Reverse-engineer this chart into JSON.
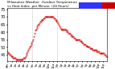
{
  "title": "Milwaukee Weather Outdoor Temperature vs Heat Index per Minute (24 Hours)",
  "bg_color": "#ffffff",
  "plot_bg": "#ffffff",
  "line_color_temp": "#dd0000",
  "line_color_heat": "#0000cc",
  "legend_temp_color": "#dd0000",
  "legend_heat_color": "#3333ff",
  "legend_bar_color": "#cc0000",
  "ylim": [
    41,
    75
  ],
  "ylabel_values": [
    45,
    50,
    55,
    60,
    65,
    70,
    75
  ],
  "xlabel_ticks": [
    0,
    60,
    120,
    180,
    240,
    300,
    360,
    420,
    480,
    540,
    600,
    660,
    720,
    780,
    840,
    900,
    960,
    1020,
    1080,
    1140,
    1200,
    1260,
    1320,
    1380
  ],
  "xlabel_labels": [
    "Mn",
    "1a",
    "2a",
    "3a",
    "4a",
    "5a",
    "6a",
    "7a",
    "8a",
    "9a",
    "10a",
    "11a",
    "Nn",
    "1p",
    "2p",
    "3p",
    "4p",
    "5p",
    "6p",
    "7p",
    "8p",
    "9p",
    "10p",
    "11p"
  ],
  "vlines": [
    360,
    720
  ],
  "temp_data": [
    [
      0,
      47
    ],
    [
      10,
      46
    ],
    [
      20,
      46
    ],
    [
      30,
      45
    ],
    [
      40,
      45
    ],
    [
      50,
      44
    ],
    [
      60,
      44
    ],
    [
      70,
      44
    ],
    [
      80,
      43
    ],
    [
      90,
      43
    ],
    [
      100,
      43
    ],
    [
      110,
      43
    ],
    [
      120,
      42
    ],
    [
      130,
      42
    ],
    [
      140,
      42
    ],
    [
      150,
      42
    ],
    [
      160,
      42
    ],
    [
      170,
      42
    ],
    [
      180,
      42
    ],
    [
      190,
      42
    ],
    [
      200,
      42
    ],
    [
      210,
      42
    ],
    [
      220,
      42
    ],
    [
      230,
      43
    ],
    [
      240,
      43
    ],
    [
      250,
      43
    ],
    [
      260,
      44
    ],
    [
      270,
      45
    ],
    [
      280,
      46
    ],
    [
      290,
      47
    ],
    [
      300,
      48
    ],
    [
      310,
      49
    ],
    [
      320,
      50
    ],
    [
      330,
      51
    ],
    [
      340,
      52
    ],
    [
      350,
      53
    ],
    [
      360,
      54
    ],
    [
      370,
      55
    ],
    [
      380,
      57
    ],
    [
      390,
      59
    ],
    [
      400,
      61
    ],
    [
      410,
      62
    ],
    [
      420,
      63
    ],
    [
      430,
      64
    ],
    [
      440,
      65
    ],
    [
      450,
      65
    ],
    [
      460,
      66
    ],
    [
      470,
      67
    ],
    [
      480,
      67
    ],
    [
      490,
      68
    ],
    [
      500,
      68
    ],
    [
      510,
      68
    ],
    [
      520,
      69
    ],
    [
      530,
      69
    ],
    [
      540,
      70
    ],
    [
      550,
      70
    ],
    [
      560,
      70
    ],
    [
      570,
      70
    ],
    [
      580,
      70
    ],
    [
      590,
      70
    ],
    [
      600,
      70
    ],
    [
      610,
      70
    ],
    [
      620,
      70
    ],
    [
      630,
      70
    ],
    [
      640,
      70
    ],
    [
      650,
      70
    ],
    [
      660,
      70
    ],
    [
      670,
      69
    ],
    [
      680,
      69
    ],
    [
      690,
      68
    ],
    [
      700,
      68
    ],
    [
      710,
      67
    ],
    [
      720,
      67
    ],
    [
      730,
      66
    ],
    [
      740,
      65
    ],
    [
      750,
      64
    ],
    [
      760,
      63
    ],
    [
      770,
      62
    ],
    [
      780,
      62
    ],
    [
      790,
      62
    ],
    [
      800,
      62
    ],
    [
      810,
      62
    ],
    [
      820,
      62
    ],
    [
      830,
      62
    ],
    [
      840,
      61
    ],
    [
      850,
      61
    ],
    [
      860,
      60
    ],
    [
      870,
      60
    ],
    [
      880,
      59
    ],
    [
      890,
      59
    ],
    [
      900,
      59
    ],
    [
      910,
      58
    ],
    [
      920,
      58
    ],
    [
      930,
      57
    ],
    [
      940,
      57
    ],
    [
      950,
      57
    ],
    [
      960,
      56
    ],
    [
      970,
      56
    ],
    [
      980,
      55
    ],
    [
      990,
      55
    ],
    [
      1000,
      55
    ],
    [
      1010,
      55
    ],
    [
      1020,
      55
    ],
    [
      1030,
      55
    ],
    [
      1040,
      55
    ],
    [
      1050,
      54
    ],
    [
      1060,
      54
    ],
    [
      1070,
      54
    ],
    [
      1080,
      53
    ],
    [
      1090,
      53
    ],
    [
      1100,
      52
    ],
    [
      1110,
      52
    ],
    [
      1120,
      52
    ],
    [
      1130,
      51
    ],
    [
      1140,
      51
    ],
    [
      1150,
      51
    ],
    [
      1160,
      50
    ],
    [
      1170,
      50
    ],
    [
      1180,
      50
    ],
    [
      1190,
      49
    ],
    [
      1200,
      49
    ],
    [
      1210,
      49
    ],
    [
      1220,
      49
    ],
    [
      1230,
      48
    ],
    [
      1240,
      48
    ],
    [
      1250,
      48
    ],
    [
      1260,
      48
    ],
    [
      1270,
      48
    ],
    [
      1280,
      48
    ],
    [
      1290,
      47
    ],
    [
      1300,
      47
    ],
    [
      1310,
      47
    ],
    [
      1320,
      47
    ],
    [
      1330,
      46
    ],
    [
      1340,
      46
    ],
    [
      1350,
      46
    ],
    [
      1360,
      46
    ],
    [
      1370,
      46
    ],
    [
      1380,
      46
    ],
    [
      1390,
      46
    ],
    [
      1400,
      45
    ],
    [
      1410,
      45
    ],
    [
      1420,
      44
    ],
    [
      1439,
      44
    ]
  ]
}
